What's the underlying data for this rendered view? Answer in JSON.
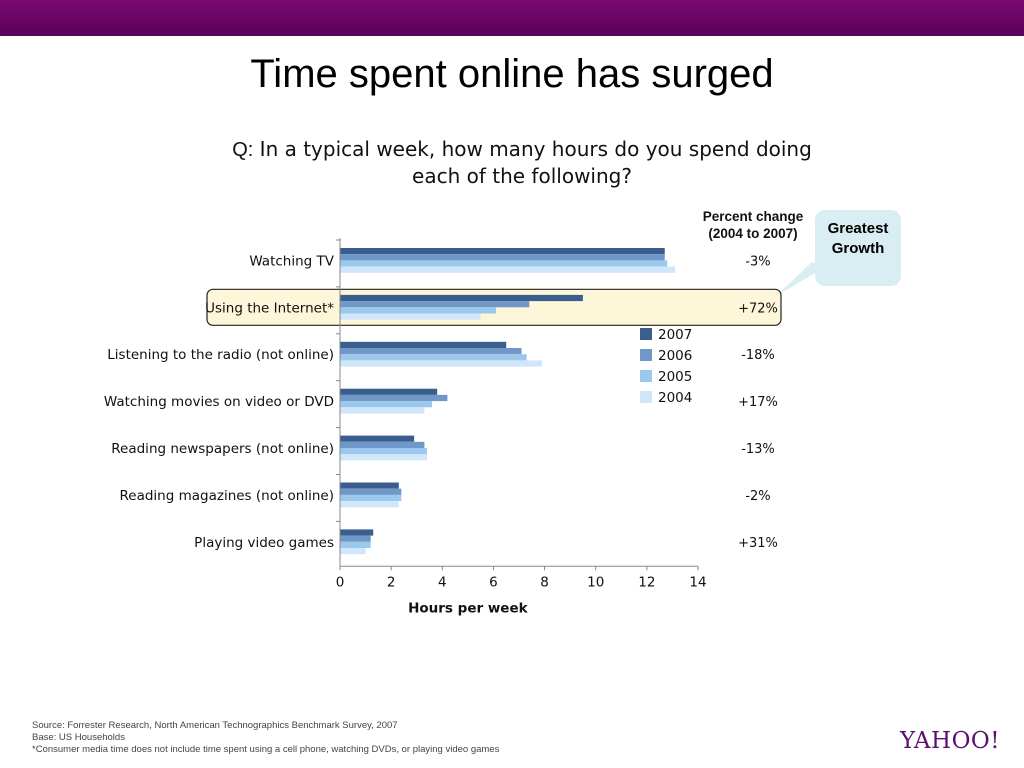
{
  "slide": {
    "title": "Time spent online has surged",
    "question_prefix": "Q:",
    "question_text": "In a typical week, how many hours do you spend doing each of the following?",
    "percent_header_line1": "Percent change",
    "percent_header_line2": "(2004 to 2007)",
    "callout": "Greatest Growth",
    "footer_source": "Source: Forrester Research, North American Technographics Benchmark Survey, 2007",
    "footer_base": "Base: US Households",
    "footer_note": "*Consumer media time does not include time spent using a cell phone, watching DVDs, or playing video games",
    "logo": "YAHOO!",
    "colors": {
      "topbar": "#6a0565",
      "highlight": "#fdf6d8",
      "callout": "#d9eef2",
      "logo": "#5b0f6e"
    }
  },
  "chart_data": {
    "type": "bar",
    "orientation": "horizontal",
    "categories": [
      "Watching TV",
      "Using the Internet*",
      "Listening to the radio (not online)",
      "Watching movies on video or DVD",
      "Reading newspapers (not online)",
      "Reading magazines (not online)",
      "Playing video games"
    ],
    "series": [
      {
        "name": "2007",
        "color": "#3a5f8f",
        "values": [
          12.7,
          9.5,
          6.5,
          3.8,
          2.9,
          2.3,
          1.3
        ]
      },
      {
        "name": "2006",
        "color": "#6f98c8",
        "values": [
          12.7,
          7.4,
          7.1,
          4.2,
          3.3,
          2.4,
          1.2
        ]
      },
      {
        "name": "2005",
        "color": "#9dc8ee",
        "values": [
          12.8,
          6.1,
          7.3,
          3.6,
          3.4,
          2.4,
          1.2
        ]
      },
      {
        "name": "2004",
        "color": "#cfe6fb",
        "values": [
          13.1,
          5.5,
          7.9,
          3.3,
          3.4,
          2.3,
          1.0
        ]
      }
    ],
    "percent_change": [
      "-3%",
      "+72%",
      "-18%",
      "+17%",
      "-13%",
      "-2%",
      "+31%"
    ],
    "highlight_category": "Using the Internet*",
    "xlabel": "Hours per week",
    "ylabel": "",
    "xlim": [
      0,
      14
    ],
    "xticks": [
      0,
      2,
      4,
      6,
      8,
      10,
      12,
      14
    ],
    "legend": [
      "2007",
      "2006",
      "2005",
      "2004"
    ],
    "legend_position": "right",
    "grid": false
  }
}
